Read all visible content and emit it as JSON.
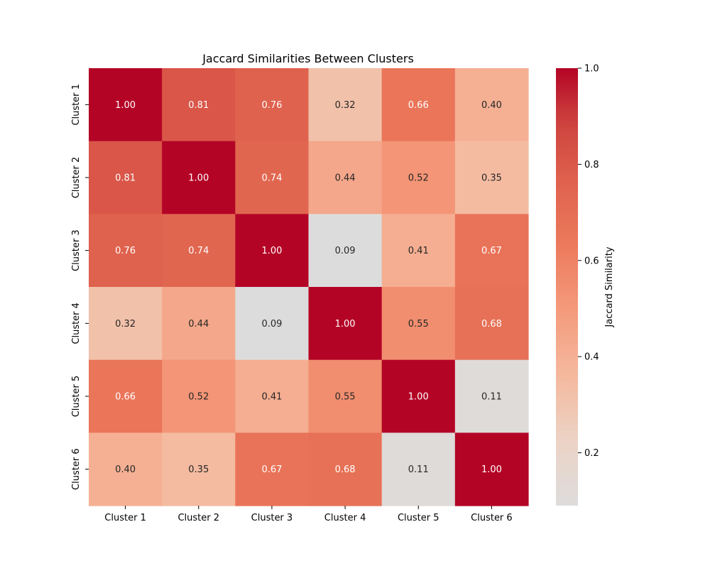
{
  "chart_data": {
    "type": "heatmap",
    "title": "Jaccard Similarities Between Clusters",
    "x_labels": [
      "Cluster 1",
      "Cluster 2",
      "Cluster 3",
      "Cluster 4",
      "Cluster 5",
      "Cluster 6"
    ],
    "y_labels": [
      "Cluster 1",
      "Cluster 2",
      "Cluster 3",
      "Cluster 4",
      "Cluster 5",
      "Cluster 6"
    ],
    "values": [
      [
        1.0,
        0.81,
        0.76,
        0.32,
        0.66,
        0.4
      ],
      [
        0.81,
        1.0,
        0.74,
        0.44,
        0.52,
        0.35
      ],
      [
        0.76,
        0.74,
        1.0,
        0.09,
        0.41,
        0.67
      ],
      [
        0.32,
        0.44,
        0.09,
        1.0,
        0.55,
        0.68
      ],
      [
        0.66,
        0.52,
        0.41,
        0.55,
        1.0,
        0.11
      ],
      [
        0.4,
        0.35,
        0.67,
        0.68,
        0.11,
        1.0
      ]
    ],
    "value_format": "0.00",
    "colormap": "coolwarm-upper-half",
    "color_range": [
      0.09,
      1.0
    ],
    "colorbar": {
      "label": "Jaccard Similarity",
      "ticks": [
        0.2,
        0.4,
        0.6,
        0.8,
        1.0
      ],
      "tick_labels": [
        "0.2",
        "0.4",
        "0.6",
        "0.8",
        "1.0"
      ]
    },
    "grid": false
  }
}
